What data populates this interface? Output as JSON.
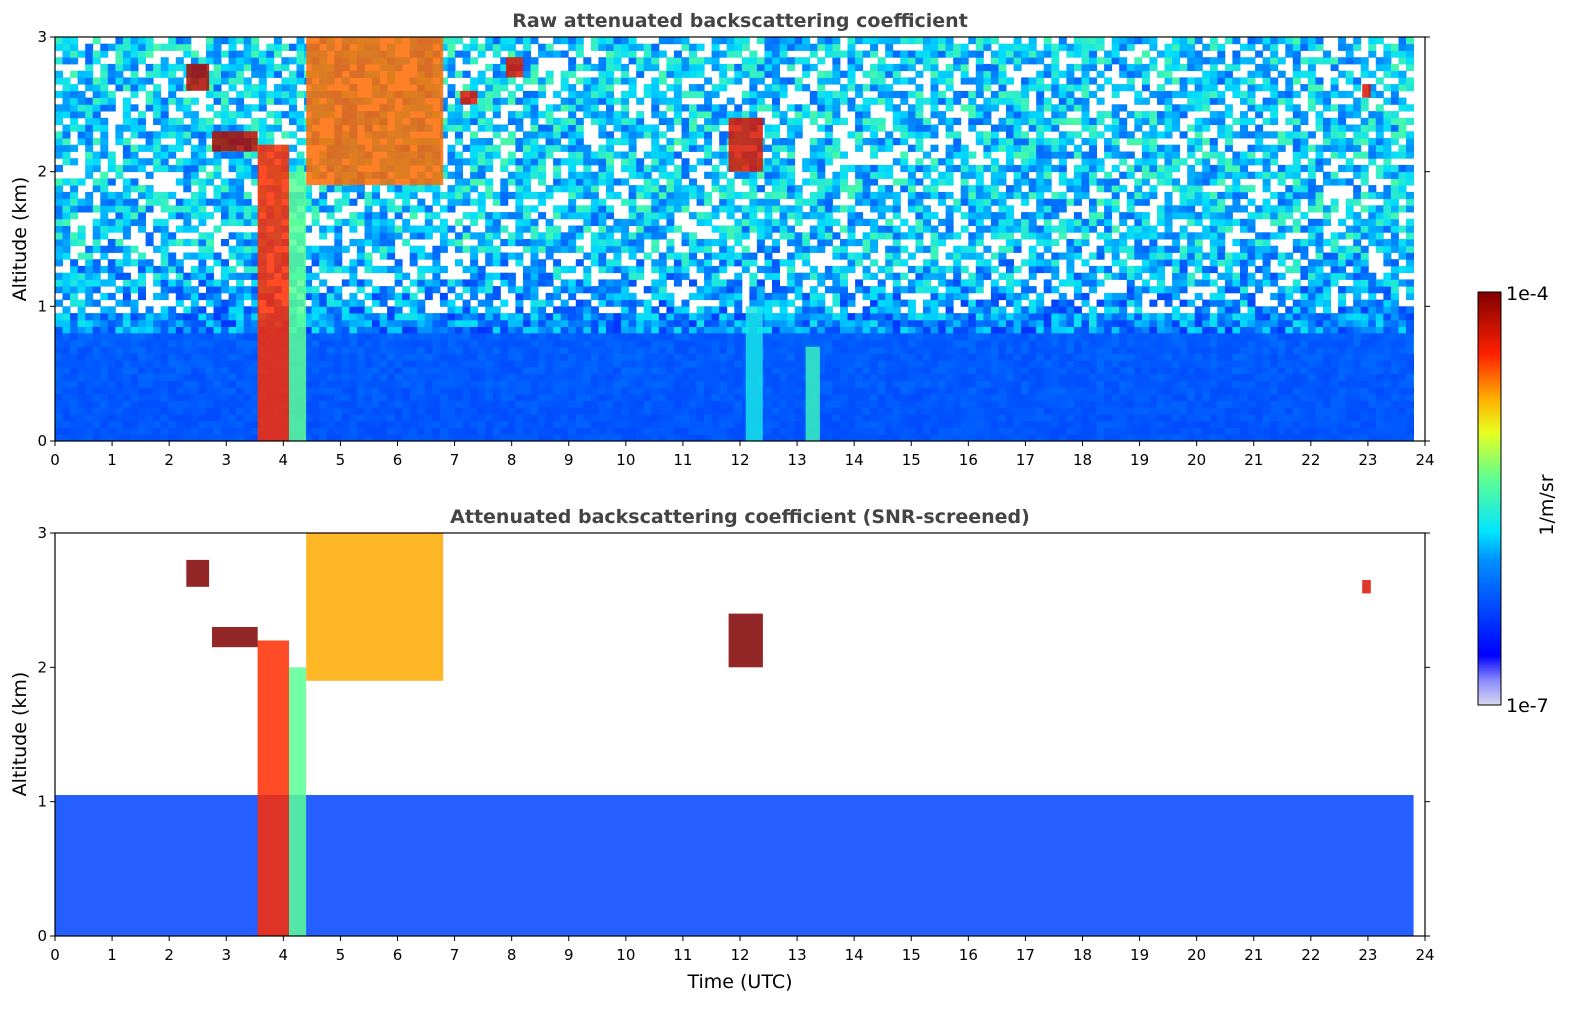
{
  "chart_data": [
    {
      "type": "heatmap",
      "title": "Raw attenuated backscattering coefficient",
      "xlabel": "",
      "ylabel": "Altitude (km)",
      "xlim": [
        0,
        24
      ],
      "ylim": [
        0,
        3
      ],
      "x_ticks": [
        "0",
        "1",
        "2",
        "3",
        "4",
        "5",
        "6",
        "7",
        "8",
        "9",
        "10",
        "11",
        "12",
        "13",
        "14",
        "15",
        "16",
        "17",
        "18",
        "19",
        "20",
        "21",
        "22",
        "23",
        "24"
      ],
      "y_ticks": [
        "0",
        "1",
        "2",
        "3"
      ],
      "data_end_time": 23.8,
      "screened": false,
      "features": [
        {
          "name": "boundary layer aerosol",
          "t": [
            0,
            23.8
          ],
          "alt_km": [
            0,
            0.8
          ],
          "level": 0.25
        },
        {
          "name": "precipitation",
          "t": [
            3.55,
            4.1
          ],
          "alt_km": [
            0,
            2.2
          ],
          "level": 0.85
        },
        {
          "name": "precipitation",
          "t": [
            4.1,
            4.4
          ],
          "alt_km": [
            0,
            2.0
          ],
          "level": 0.55
        },
        {
          "name": "low cloud",
          "t": [
            2.75,
            3.55
          ],
          "alt_km": [
            2.15,
            2.3
          ],
          "level": 0.95
        },
        {
          "name": "cloud",
          "t": [
            4.4,
            6.8
          ],
          "alt_km": [
            1.9,
            3.0
          ],
          "level": 0.8
        },
        {
          "name": "cloud",
          "t": [
            2.3,
            2.7
          ],
          "alt_km": [
            2.6,
            2.8
          ],
          "level": 0.95
        },
        {
          "name": "cloud",
          "t": [
            7.1,
            7.4
          ],
          "alt_km": [
            2.5,
            2.6
          ],
          "level": 0.9
        },
        {
          "name": "cloud",
          "t": [
            7.9,
            8.2
          ],
          "alt_km": [
            2.7,
            2.85
          ],
          "level": 0.9
        },
        {
          "name": "cloud",
          "t": [
            11.8,
            12.4
          ],
          "alt_km": [
            2.0,
            2.4
          ],
          "level": 0.9
        },
        {
          "name": "cloud",
          "t": [
            22.9,
            23.05
          ],
          "alt_km": [
            2.55,
            2.65
          ],
          "level": 0.9
        },
        {
          "name": "plume",
          "t": [
            12.1,
            12.4
          ],
          "alt_km": [
            0,
            1.0
          ],
          "level": 0.45
        },
        {
          "name": "plume",
          "t": [
            13.15,
            13.4
          ],
          "alt_km": [
            0,
            0.7
          ],
          "level": 0.5
        }
      ]
    },
    {
      "type": "heatmap",
      "title": "Attenuated backscattering coefficient (SNR-screened)",
      "xlabel": "Time (UTC)",
      "ylabel": "Altitude (km)",
      "xlim": [
        0,
        24
      ],
      "ylim": [
        0,
        3
      ],
      "x_ticks": [
        "0",
        "1",
        "2",
        "3",
        "4",
        "5",
        "6",
        "7",
        "8",
        "9",
        "10",
        "11",
        "12",
        "13",
        "14",
        "15",
        "16",
        "17",
        "18",
        "19",
        "20",
        "21",
        "22",
        "23",
        "24"
      ],
      "y_ticks": [
        "0",
        "1",
        "2",
        "3"
      ],
      "data_end_time": 23.8,
      "screened": true,
      "features": [
        {
          "name": "boundary layer aerosol",
          "t": [
            0,
            23.8
          ],
          "alt_km": [
            0,
            1.05
          ],
          "level": 0.22
        },
        {
          "name": "precipitation",
          "t": [
            3.55,
            4.1
          ],
          "alt_km": [
            0,
            2.2
          ],
          "level": 0.85
        },
        {
          "name": "precipitation",
          "t": [
            4.1,
            4.4
          ],
          "alt_km": [
            0,
            2.0
          ],
          "level": 0.55
        },
        {
          "name": "low cloud",
          "t": [
            2.75,
            3.55
          ],
          "alt_km": [
            2.15,
            2.3
          ],
          "level": 1.0
        },
        {
          "name": "cloud",
          "t": [
            4.4,
            6.8
          ],
          "alt_km": [
            1.9,
            3.0
          ],
          "level": 0.75
        },
        {
          "name": "cloud",
          "t": [
            2.3,
            2.7
          ],
          "alt_km": [
            2.6,
            2.8
          ],
          "level": 1.0
        },
        {
          "name": "cloud",
          "t": [
            11.8,
            12.4
          ],
          "alt_km": [
            2.0,
            2.4
          ],
          "level": 1.0
        },
        {
          "name": "cloud",
          "t": [
            22.9,
            23.05
          ],
          "alt_km": [
            2.55,
            2.65
          ],
          "level": 0.9
        }
      ]
    }
  ],
  "colorbar": {
    "label": "1/m/sr",
    "max_label": "1e-4",
    "min_label": "1e-7",
    "scale": "log",
    "colormap": "jet",
    "colormap_stops": [
      "#000080",
      "#0000ff",
      "#00ffff",
      "#ffff00",
      "#ff0000",
      "#800000"
    ]
  }
}
